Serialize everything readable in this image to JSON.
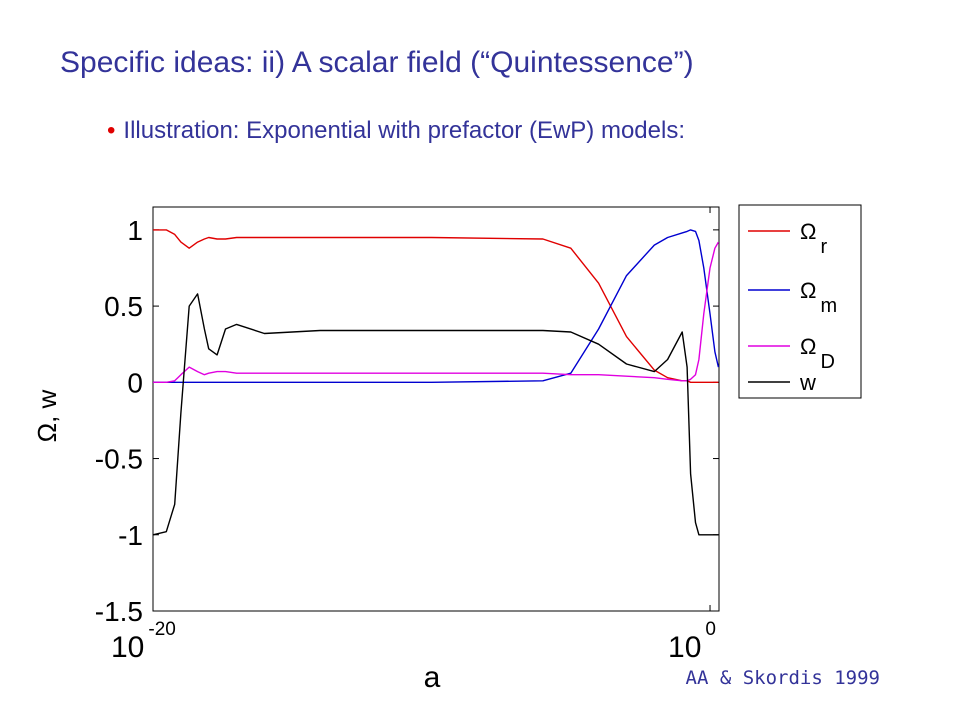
{
  "title": "Specific ideas:  ii) A scalar field (“Quintessence”)",
  "bullet": "Illustration: Exponential with prefactor (EwP) models:",
  "credit": "AA & Skordis 1999",
  "chart_data": {
    "type": "line",
    "x_label": "a",
    "y_label": "Ω, w",
    "x_log": true,
    "xlim": [
      1e-20,
      2.1
    ],
    "ylim": [
      -1.5,
      1.15
    ],
    "xticks": [
      {
        "value": 1e-20,
        "label": "10^-20"
      },
      {
        "value": 1,
        "label": "10^0"
      }
    ],
    "yticks": [
      1,
      0.5,
      0,
      -0.5,
      -1,
      -1.5
    ],
    "legend": "outside-right",
    "x": [
      1e-20,
      3e-20,
      6e-20,
      1e-19,
      2e-19,
      4e-19,
      7e-19,
      1e-18,
      2e-18,
      4e-18,
      1e-17,
      1e-16,
      1e-14,
      1e-10,
      1e-06,
      1e-05,
      0.0001,
      0.001,
      0.01,
      0.03,
      0.1,
      0.15,
      0.2,
      0.3,
      0.4,
      0.6,
      1,
      1.5,
      2
    ],
    "series": [
      {
        "name": "Ω_r",
        "color": "#e00000",
        "values": [
          1,
          1,
          0.97,
          0.92,
          0.88,
          0.92,
          0.94,
          0.95,
          0.94,
          0.94,
          0.95,
          0.95,
          0.95,
          0.95,
          0.94,
          0.88,
          0.65,
          0.3,
          0.08,
          0.03,
          0.01,
          0.01,
          0,
          0,
          0,
          0,
          0,
          0,
          0
        ]
      },
      {
        "name": "Ω_m",
        "color": "#0000d0",
        "values": [
          0,
          0,
          0,
          0,
          0,
          0,
          0,
          0,
          0,
          0,
          0,
          0,
          0,
          0,
          0.01,
          0.06,
          0.35,
          0.7,
          0.9,
          0.95,
          0.98,
          0.99,
          1,
          0.99,
          0.93,
          0.75,
          0.45,
          0.2,
          0.1
        ]
      },
      {
        "name": "Ω_D",
        "color": "#e000e0",
        "values": [
          0,
          0,
          0.01,
          0.05,
          0.1,
          0.07,
          0.05,
          0.06,
          0.07,
          0.07,
          0.06,
          0.06,
          0.06,
          0.06,
          0.06,
          0.05,
          0.05,
          0.04,
          0.03,
          0.02,
          0.01,
          0.01,
          0.02,
          0.05,
          0.15,
          0.45,
          0.75,
          0.88,
          0.92
        ]
      },
      {
        "name": "w",
        "color": "#000000",
        "values": [
          -1,
          -0.98,
          -0.8,
          -0.2,
          0.5,
          0.58,
          0.35,
          0.22,
          0.18,
          0.35,
          0.38,
          0.32,
          0.34,
          0.34,
          0.34,
          0.33,
          0.25,
          0.12,
          0.07,
          0.15,
          0.33,
          0.1,
          -0.6,
          -0.92,
          -1,
          -1,
          -1,
          -1,
          -1
        ]
      }
    ]
  }
}
